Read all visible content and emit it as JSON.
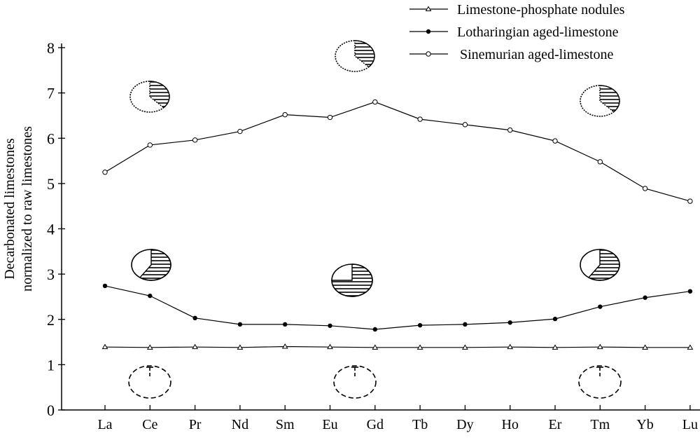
{
  "chart_data": {
    "type": "line",
    "title": "",
    "xlabel": "",
    "ylabel_line1": "Decarbonated limestones",
    "ylabel_line2": "normalized to raw limestones",
    "categories": [
      "La",
      "Ce",
      "Pr",
      "Nd",
      "Sm",
      "Eu",
      "Gd",
      "Tb",
      "Dy",
      "Ho",
      "Er",
      "Tm",
      "Yb",
      "Lu"
    ],
    "ylim": [
      0,
      8
    ],
    "yticks": [
      "0",
      "1",
      "2",
      "3",
      "4",
      "5",
      "6",
      "7",
      "8"
    ],
    "grid": false,
    "legend_placement": "top-right",
    "series": [
      {
        "name": "Limestone-phosphate nodules",
        "marker": "open-triangle",
        "values": [
          1.39,
          1.38,
          1.39,
          1.38,
          1.4,
          1.39,
          1.38,
          1.38,
          1.38,
          1.39,
          1.38,
          1.39,
          1.38,
          1.38
        ]
      },
      {
        "name": "Lotharingian aged-limestone",
        "marker": "filled-circle",
        "values": [
          2.74,
          2.52,
          2.03,
          1.89,
          1.89,
          1.86,
          1.78,
          1.87,
          1.89,
          1.93,
          2.01,
          2.28,
          2.48,
          2.62
        ]
      },
      {
        "name": "Sinemurian aged-limestone",
        "marker": "open-circle",
        "values": [
          5.25,
          5.85,
          5.96,
          6.15,
          6.52,
          6.46,
          6.8,
          6.42,
          6.3,
          6.18,
          5.94,
          5.48,
          4.89,
          4.61
        ]
      }
    ],
    "colors": {
      "line": "#000000",
      "background": "#ffffff"
    }
  }
}
